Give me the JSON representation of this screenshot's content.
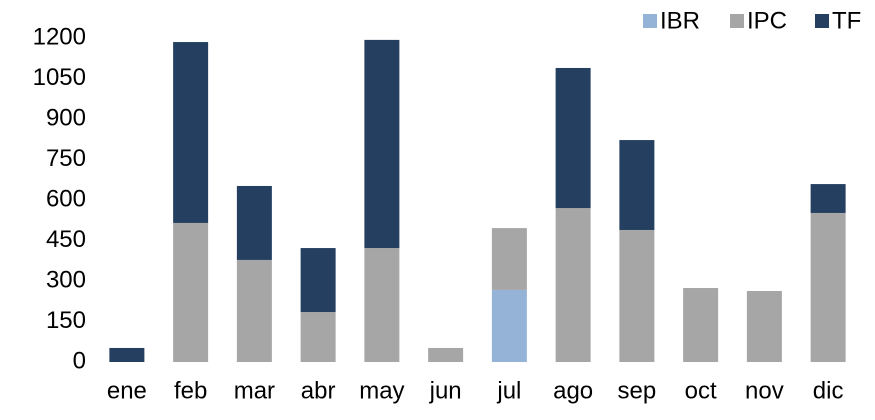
{
  "chart_data": {
    "type": "stacked_bar",
    "categories": [
      "ene",
      "feb",
      "mar",
      "abr",
      "may",
      "jun",
      "jul",
      "ago",
      "sep",
      "oct",
      "nov",
      "dic"
    ],
    "series": [
      {
        "name": "IBR",
        "color": "#95b3d7",
        "values": [
          0,
          0,
          0,
          0,
          0,
          0,
          267,
          0,
          0,
          0,
          0,
          0
        ]
      },
      {
        "name": "IPC",
        "color": "#a6a6a6",
        "values": [
          0,
          515,
          378,
          185,
          422,
          52,
          229,
          570,
          489,
          274,
          263,
          552
        ]
      },
      {
        "name": "TF",
        "color": "#243f60",
        "values": [
          52,
          670,
          274,
          237,
          771,
          0,
          0,
          519,
          333,
          0,
          0,
          107
        ]
      }
    ],
    "ylim": [
      0,
      1200
    ],
    "yticks": [
      0,
      150,
      300,
      450,
      600,
      750,
      900,
      1050,
      1200
    ],
    "legend": "top-right"
  }
}
